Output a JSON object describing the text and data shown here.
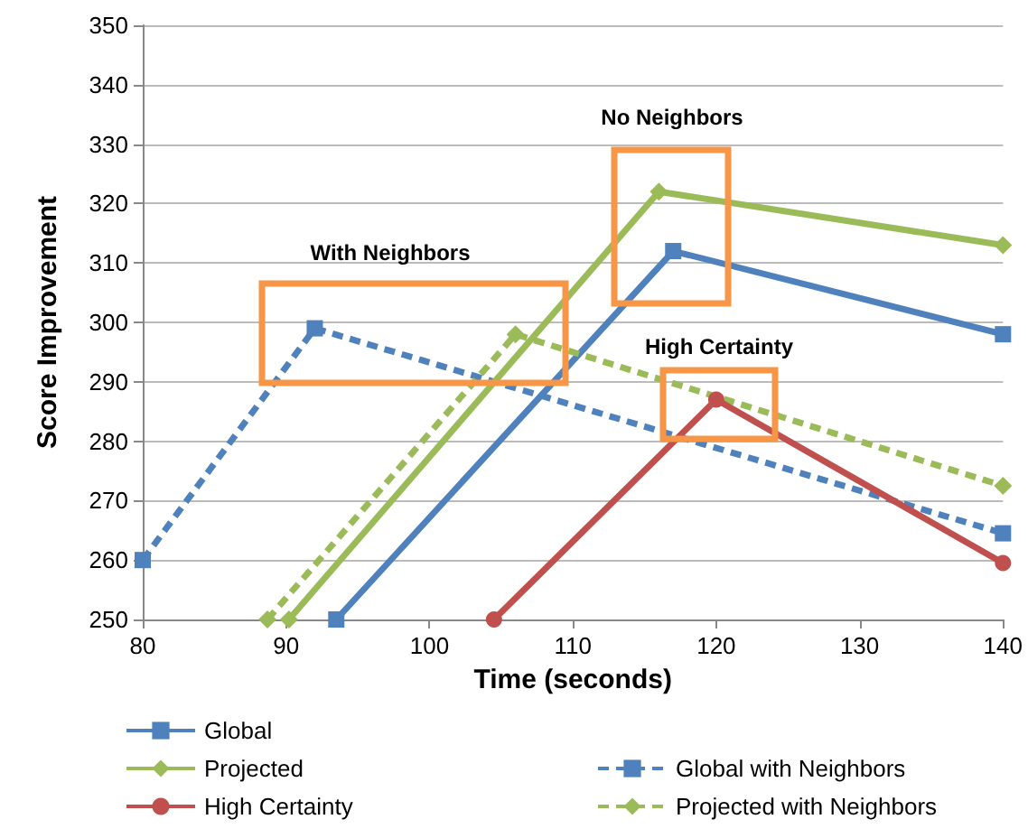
{
  "chart_data": {
    "type": "line",
    "xlabel": "Time (seconds)",
    "ylabel": "Score Improvement",
    "xlim": [
      80,
      140
    ],
    "xticks": [
      80,
      90,
      100,
      110,
      120,
      130,
      140
    ],
    "ylim": [
      250,
      350
    ],
    "yticks": [
      250,
      260,
      270,
      280,
      290,
      300,
      310,
      320,
      330,
      340,
      350
    ],
    "grid": "y",
    "legend": "bottom",
    "series": [
      {
        "name": "Global",
        "color": "#4f81bd",
        "marker": "square",
        "line_style": "solid",
        "x": [
          93.5,
          117,
          140
        ],
        "values": [
          250,
          312,
          298
        ]
      },
      {
        "name": "Global with Neighbors",
        "color": "#4f81bd",
        "marker": "square",
        "line_style": "dashed",
        "x": [
          80,
          92,
          140
        ],
        "values": [
          260,
          299,
          264.5
        ]
      },
      {
        "name": "Projected",
        "color": "#9bbb59",
        "marker": "diamond",
        "line_style": "solid",
        "x": [
          90.2,
          116,
          140
        ],
        "values": [
          250,
          322,
          313
        ]
      },
      {
        "name": "Projected with Neighbors",
        "color": "#9bbb59",
        "marker": "diamond",
        "line_style": "dashed",
        "x": [
          88.7,
          106,
          140
        ],
        "values": [
          250,
          298,
          272.5
        ]
      },
      {
        "name": "High Certainty",
        "color": "#c0504d",
        "marker": "circle",
        "line_style": "solid",
        "x": [
          104.5,
          120,
          140
        ],
        "values": [
          250,
          287,
          259.5
        ]
      }
    ],
    "annotations": [
      "With Neighbors",
      "No Neighbors",
      "High Certainty"
    ]
  }
}
